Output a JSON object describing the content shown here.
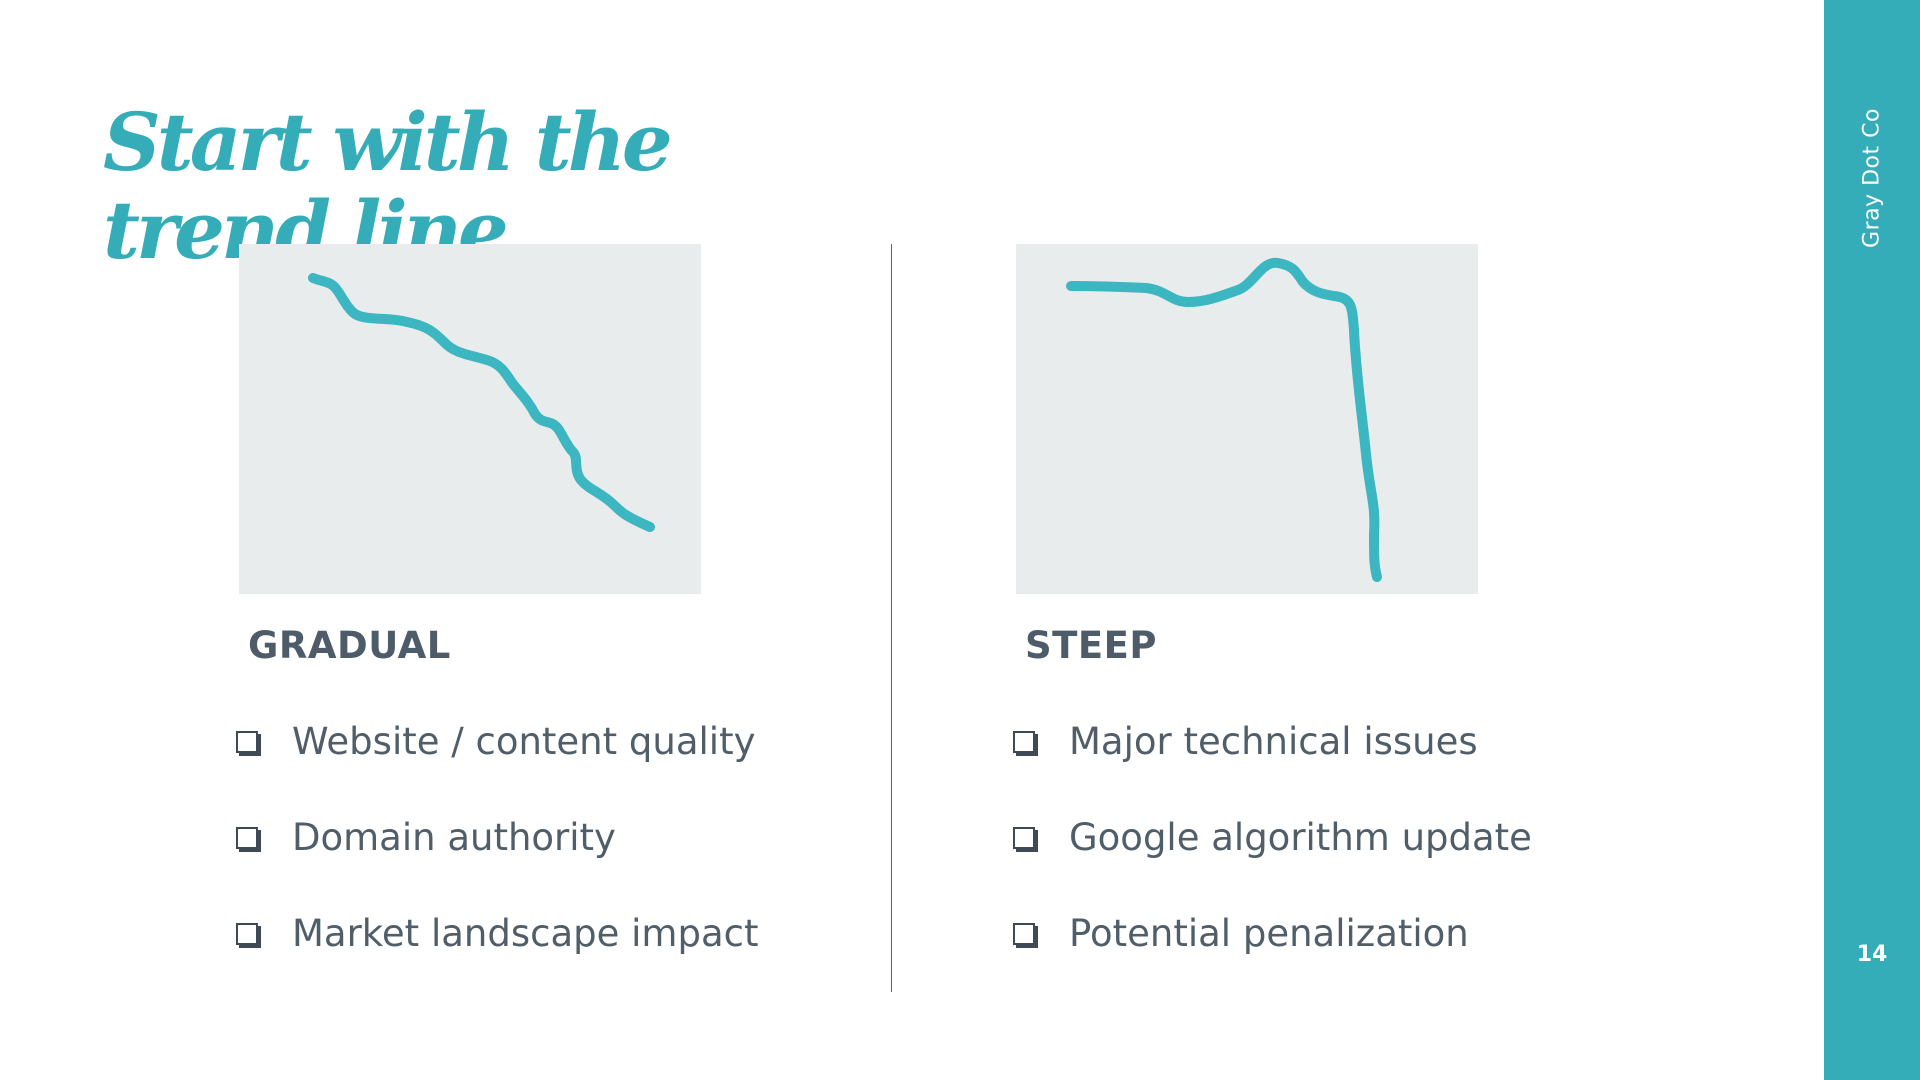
{
  "slide": {
    "title": "Start with the trend line.",
    "page_number": "14",
    "brand": "Gray Dot Co"
  },
  "left_column": {
    "heading": "GRADUAL",
    "items": [
      "Website / content quality",
      "Domain authority",
      "Market landscape impact"
    ]
  },
  "right_column": {
    "heading": "STEEP",
    "items": [
      "Major technical issues",
      "Google algorithm update",
      "Potential penalization"
    ]
  },
  "illustrations": {
    "gradual": "gradual-decline-line-icon",
    "steep": "steep-drop-line-icon"
  },
  "colors": {
    "accent": "#35adb8",
    "text": "#505e6a",
    "panel": "#e9ecec"
  }
}
